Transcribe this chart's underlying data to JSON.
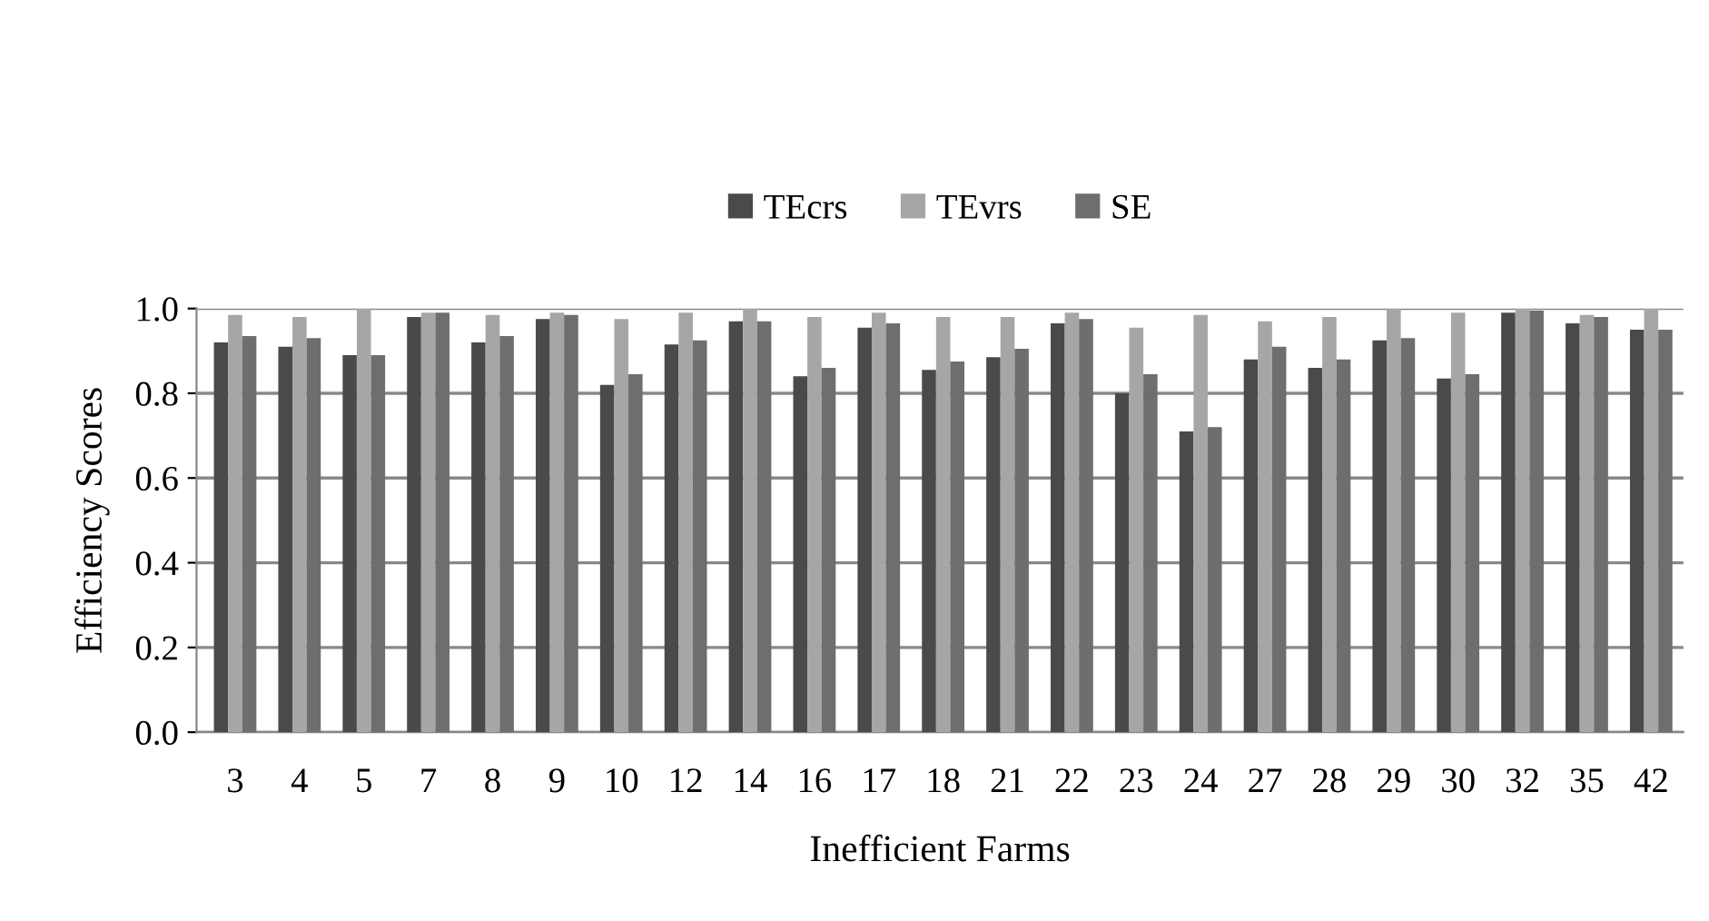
{
  "chart_data": {
    "type": "bar",
    "xlabel": "Inefficient Farms",
    "ylabel": "Efficiency Scores",
    "categories": [
      "3",
      "4",
      "5",
      "7",
      "8",
      "9",
      "10",
      "12",
      "14",
      "16",
      "17",
      "18",
      "21",
      "22",
      "23",
      "24",
      "27",
      "28",
      "29",
      "30",
      "32",
      "35",
      "42"
    ],
    "series": [
      {
        "name": "TEcrs",
        "color": "#4a4a4a",
        "values": [
          0.92,
          0.91,
          0.89,
          0.98,
          0.92,
          0.975,
          0.82,
          0.915,
          0.97,
          0.84,
          0.955,
          0.855,
          0.885,
          0.965,
          0.8,
          0.71,
          0.88,
          0.86,
          0.925,
          0.835,
          0.99,
          0.965,
          0.95
        ]
      },
      {
        "name": "TEvrs",
        "color": "#a6a6a6",
        "values": [
          0.985,
          0.98,
          1.0,
          0.99,
          0.985,
          0.99,
          0.975,
          0.99,
          1.0,
          0.98,
          0.99,
          0.98,
          0.98,
          0.99,
          0.955,
          0.985,
          0.97,
          0.98,
          1.0,
          0.99,
          1.0,
          0.985,
          1.0
        ]
      },
      {
        "name": "SE",
        "color": "#6e6e6e",
        "values": [
          0.935,
          0.93,
          0.89,
          0.99,
          0.935,
          0.985,
          0.845,
          0.925,
          0.97,
          0.86,
          0.965,
          0.875,
          0.905,
          0.975,
          0.845,
          0.72,
          0.91,
          0.88,
          0.93,
          0.845,
          0.995,
          0.98,
          0.95
        ]
      }
    ],
    "ylim": [
      0,
      1.0
    ],
    "yticks": [
      {
        "value": 0,
        "label": "0.0"
      },
      {
        "value": 0.2,
        "label": "0.2"
      },
      {
        "value": 0.4,
        "label": "0.4"
      },
      {
        "value": 0.6,
        "label": "0.6"
      },
      {
        "value": 0.8,
        "label": "0.8"
      },
      {
        "value": 1.0,
        "label": "1.0"
      }
    ],
    "grid": "y",
    "legend": "top"
  }
}
